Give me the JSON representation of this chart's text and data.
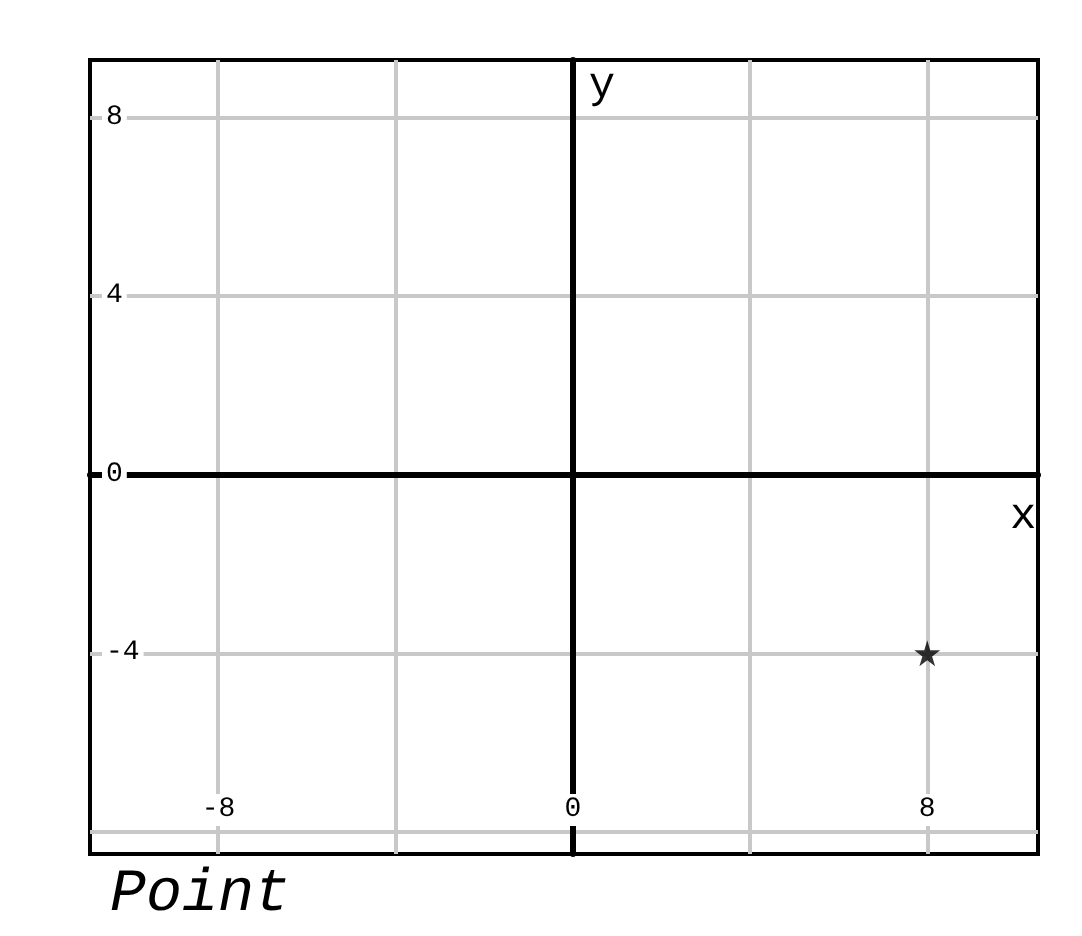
{
  "chart_data": {
    "type": "scatter",
    "title": "Point",
    "xlabel": "x",
    "ylabel": "y",
    "x": [
      8
    ],
    "series": [
      {
        "color": "#000000",
        "values": [
          -4
        ]
      }
    ],
    "xlim": [
      -10.9,
      10.5
    ],
    "ylim": [
      -8.5,
      9.3
    ],
    "xticks": [
      -8,
      {
        "value": -4,
        "label": null
      },
      0,
      {
        "value": 4,
        "label": null
      },
      8
    ],
    "yticks": [
      {
        "value": -8,
        "label": null
      },
      -4,
      0,
      4,
      8
    ],
    "grid": true,
    "marker": "star"
  }
}
